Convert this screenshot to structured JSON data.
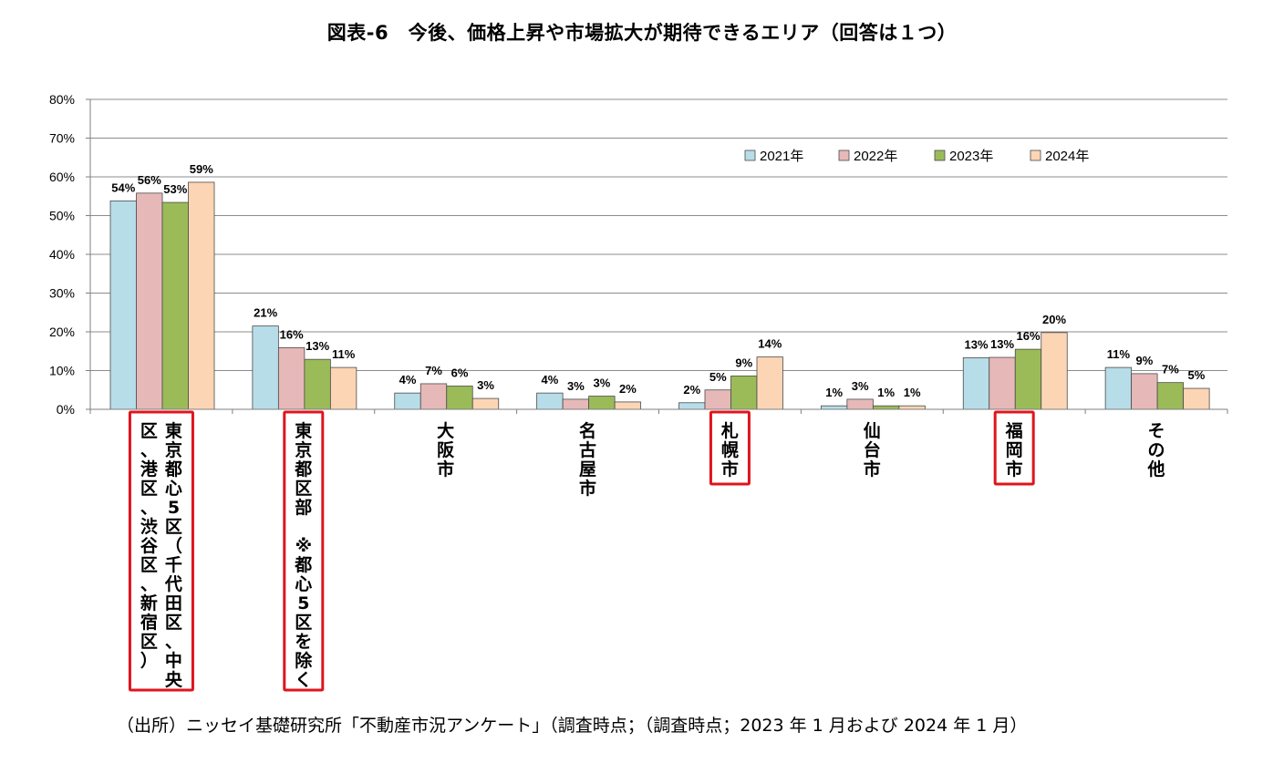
{
  "title": "図表-6　今後、価格上昇や市場拡大が期待できるエリア（回答は１つ）",
  "source_note": "（出所）ニッセイ基礎研究所「不動産市況アンケート」（調査時点；（調査時点；2023 年 1 月および 2024 年 1 月）",
  "chart_data": {
    "type": "bar",
    "categories": [
      "東京都心5区（千代田区、中央区、港区、渋谷区、新宿区）",
      "東京都区部　※都心5区を除く",
      "大阪市",
      "名古屋市",
      "札幌市",
      "仙台市",
      "福岡市",
      "その他"
    ],
    "category_label_lines": [
      [
        "東京都心5区（千代田区、中央",
        "区、港区、渋谷区、新宿区）"
      ],
      [
        "東京都区部　※都心5区を除く"
      ],
      [
        "大阪市"
      ],
      [
        "名古屋市"
      ],
      [
        "札幌市"
      ],
      [
        "仙台市"
      ],
      [
        "福岡市"
      ],
      [
        "その他"
      ]
    ],
    "highlighted_categories": [
      "東京都心5区（千代田区、中央区、港区、渋谷区、新宿区）",
      "東京都区部　※都心5区を除く",
      "札幌市",
      "福岡市"
    ],
    "highlight_color": "#e0141c",
    "series": [
      {
        "name": "2021年",
        "color": "#b7dde8",
        "values": [
          54,
          21,
          4,
          4,
          2,
          1,
          13,
          11
        ],
        "bar_values": [
          53.8,
          21.5,
          4.2,
          4.2,
          1.7,
          0.9,
          13.3,
          10.8
        ]
      },
      {
        "name": "2022年",
        "color": "#e6b9b8",
        "values": [
          56,
          16,
          7,
          3,
          5,
          3,
          13,
          9
        ],
        "bar_values": [
          55.8,
          15.9,
          6.6,
          2.6,
          5.0,
          2.6,
          13.4,
          9.2
        ]
      },
      {
        "name": "2023年",
        "color": "#9bbb59",
        "values": [
          53,
          13,
          6,
          3,
          9,
          1,
          16,
          7
        ],
        "bar_values": [
          53.4,
          12.9,
          6.0,
          3.4,
          8.6,
          0.9,
          15.5,
          6.9
        ]
      },
      {
        "name": "2024年",
        "color": "#fcd5b5",
        "values": [
          59,
          11,
          3,
          2,
          14,
          1,
          20,
          5
        ],
        "bar_values": [
          58.6,
          10.8,
          2.8,
          1.9,
          13.5,
          0.9,
          19.8,
          5.4
        ]
      }
    ],
    "data_label_suffix": "%",
    "yticks": [
      "0%",
      "10%",
      "20%",
      "30%",
      "40%",
      "50%",
      "60%",
      "70%",
      "80%"
    ],
    "ylim": [
      0,
      80
    ],
    "grid": true,
    "legend_position": "top-right"
  }
}
